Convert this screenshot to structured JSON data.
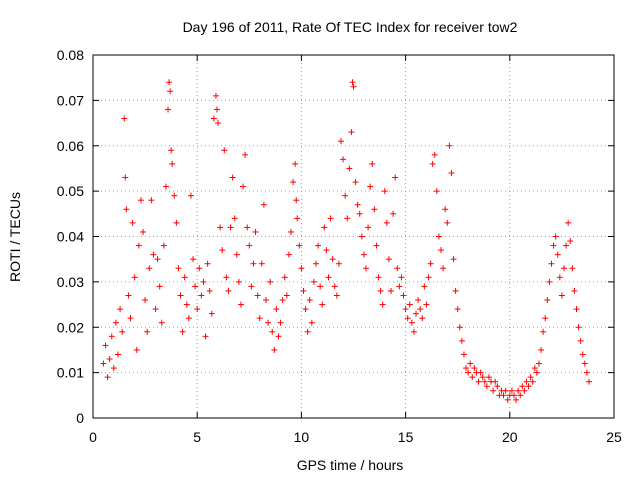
{
  "chart_data": {
    "type": "scatter",
    "title": "Day 196 of 2011, Rate Of TEC Index for receiver tow2",
    "xlabel": "GPS time / hours",
    "ylabel": "ROTI / TECUs",
    "xlim": [
      0,
      25
    ],
    "ylim": [
      0,
      0.08
    ],
    "x_ticks": [
      0,
      5,
      10,
      15,
      20,
      25
    ],
    "y_ticks": [
      0,
      0.01,
      0.02,
      0.03,
      0.04,
      0.05,
      0.06,
      0.07,
      0.08
    ],
    "x_tick_labels": [
      "0",
      "5",
      "10",
      "15",
      "20",
      "25"
    ],
    "y_tick_labels": [
      "0",
      "0.01",
      "0.02",
      "0.03",
      "0.04",
      "0.05",
      "0.06",
      "0.07",
      "0.08"
    ],
    "grid": true,
    "marker": "+",
    "color": "#ff0000",
    "series": [
      {
        "points": [
          [
            0.5,
            0.012
          ],
          [
            0.6,
            0.016
          ],
          [
            0.7,
            0.009
          ],
          [
            0.8,
            0.013
          ],
          [
            0.9,
            0.018
          ],
          [
            1.0,
            0.011
          ],
          [
            1.1,
            0.021
          ],
          [
            1.2,
            0.014
          ],
          [
            1.3,
            0.024
          ],
          [
            1.4,
            0.019
          ],
          [
            1.5,
            0.066
          ],
          [
            1.55,
            0.053
          ],
          [
            1.6,
            0.046
          ],
          [
            1.7,
            0.027
          ],
          [
            1.8,
            0.022
          ],
          [
            1.9,
            0.043
          ],
          [
            2.0,
            0.031
          ],
          [
            2.1,
            0.015
          ],
          [
            2.2,
            0.038
          ],
          [
            2.3,
            0.048
          ],
          [
            2.4,
            0.041
          ],
          [
            2.5,
            0.026
          ],
          [
            2.6,
            0.019
          ],
          [
            2.7,
            0.033
          ],
          [
            2.8,
            0.048
          ],
          [
            2.9,
            0.036
          ],
          [
            3.0,
            0.024
          ],
          [
            3.1,
            0.035
          ],
          [
            3.2,
            0.029
          ],
          [
            3.3,
            0.021
          ],
          [
            3.4,
            0.038
          ],
          [
            3.5,
            0.051
          ],
          [
            3.6,
            0.068
          ],
          [
            3.65,
            0.074
          ],
          [
            3.7,
            0.072
          ],
          [
            3.75,
            0.059
          ],
          [
            3.8,
            0.056
          ],
          [
            3.9,
            0.049
          ],
          [
            4.0,
            0.043
          ],
          [
            4.1,
            0.033
          ],
          [
            4.2,
            0.027
          ],
          [
            4.3,
            0.019
          ],
          [
            4.4,
            0.031
          ],
          [
            4.5,
            0.025
          ],
          [
            4.6,
            0.022
          ],
          [
            4.7,
            0.049
          ],
          [
            4.8,
            0.035
          ],
          [
            4.9,
            0.029
          ],
          [
            5.0,
            0.024
          ],
          [
            5.1,
            0.033
          ],
          [
            5.2,
            0.027
          ],
          [
            5.3,
            0.03
          ],
          [
            5.4,
            0.018
          ],
          [
            5.5,
            0.034
          ],
          [
            5.6,
            0.028
          ],
          [
            5.7,
            0.023
          ],
          [
            5.8,
            0.066
          ],
          [
            5.9,
            0.071
          ],
          [
            5.95,
            0.068
          ],
          [
            6.0,
            0.065
          ],
          [
            6.1,
            0.042
          ],
          [
            6.2,
            0.037
          ],
          [
            6.3,
            0.059
          ],
          [
            6.4,
            0.031
          ],
          [
            6.5,
            0.028
          ],
          [
            6.6,
            0.042
          ],
          [
            6.7,
            0.053
          ],
          [
            6.8,
            0.044
          ],
          [
            6.9,
            0.036
          ],
          [
            7.0,
            0.03
          ],
          [
            7.1,
            0.025
          ],
          [
            7.2,
            0.051
          ],
          [
            7.3,
            0.058
          ],
          [
            7.4,
            0.042
          ],
          [
            7.5,
            0.038
          ],
          [
            7.6,
            0.029
          ],
          [
            7.7,
            0.034
          ],
          [
            7.8,
            0.041
          ],
          [
            7.9,
            0.027
          ],
          [
            8.0,
            0.022
          ],
          [
            8.1,
            0.034
          ],
          [
            8.2,
            0.047
          ],
          [
            8.3,
            0.026
          ],
          [
            8.4,
            0.021
          ],
          [
            8.5,
            0.03
          ],
          [
            8.6,
            0.019
          ],
          [
            8.7,
            0.015
          ],
          [
            8.8,
            0.024
          ],
          [
            8.9,
            0.018
          ],
          [
            9.0,
            0.021
          ],
          [
            9.1,
            0.026
          ],
          [
            9.2,
            0.031
          ],
          [
            9.3,
            0.027
          ],
          [
            9.4,
            0.036
          ],
          [
            9.5,
            0.041
          ],
          [
            9.6,
            0.052
          ],
          [
            9.7,
            0.056
          ],
          [
            9.75,
            0.048
          ],
          [
            9.8,
            0.044
          ],
          [
            9.9,
            0.038
          ],
          [
            10.0,
            0.033
          ],
          [
            10.1,
            0.028
          ],
          [
            10.2,
            0.024
          ],
          [
            10.3,
            0.019
          ],
          [
            10.4,
            0.026
          ],
          [
            10.5,
            0.021
          ],
          [
            10.6,
            0.03
          ],
          [
            10.7,
            0.034
          ],
          [
            10.8,
            0.038
          ],
          [
            10.9,
            0.029
          ],
          [
            11.0,
            0.025
          ],
          [
            11.1,
            0.042
          ],
          [
            11.2,
            0.037
          ],
          [
            11.3,
            0.031
          ],
          [
            11.4,
            0.044
          ],
          [
            11.5,
            0.035
          ],
          [
            11.6,
            0.029
          ],
          [
            11.7,
            0.027
          ],
          [
            11.8,
            0.034
          ],
          [
            11.9,
            0.061
          ],
          [
            12.0,
            0.057
          ],
          [
            12.1,
            0.049
          ],
          [
            12.2,
            0.044
          ],
          [
            12.3,
            0.055
          ],
          [
            12.4,
            0.063
          ],
          [
            12.45,
            0.074
          ],
          [
            12.5,
            0.073
          ],
          [
            12.6,
            0.052
          ],
          [
            12.7,
            0.047
          ],
          [
            12.8,
            0.045
          ],
          [
            12.9,
            0.04
          ],
          [
            13.0,
            0.036
          ],
          [
            13.1,
            0.033
          ],
          [
            13.2,
            0.042
          ],
          [
            13.3,
            0.051
          ],
          [
            13.4,
            0.056
          ],
          [
            13.5,
            0.046
          ],
          [
            13.6,
            0.038
          ],
          [
            13.7,
            0.031
          ],
          [
            13.8,
            0.028
          ],
          [
            13.9,
            0.025
          ],
          [
            14.0,
            0.05
          ],
          [
            14.1,
            0.043
          ],
          [
            14.2,
            0.035
          ],
          [
            14.3,
            0.028
          ],
          [
            14.4,
            0.045
          ],
          [
            14.5,
            0.053
          ],
          [
            14.6,
            0.033
          ],
          [
            14.7,
            0.029
          ],
          [
            14.8,
            0.031
          ],
          [
            14.9,
            0.027
          ],
          [
            15.0,
            0.024
          ],
          [
            15.1,
            0.022
          ],
          [
            15.2,
            0.025
          ],
          [
            15.3,
            0.021
          ],
          [
            15.4,
            0.019
          ],
          [
            15.5,
            0.023
          ],
          [
            15.6,
            0.026
          ],
          [
            15.7,
            0.024
          ],
          [
            15.8,
            0.022
          ],
          [
            15.9,
            0.029
          ],
          [
            16.0,
            0.025
          ],
          [
            16.1,
            0.031
          ],
          [
            16.2,
            0.034
          ],
          [
            16.3,
            0.056
          ],
          [
            16.4,
            0.058
          ],
          [
            16.5,
            0.05
          ],
          [
            16.6,
            0.04
          ],
          [
            16.7,
            0.037
          ],
          [
            16.8,
            0.033
          ],
          [
            16.9,
            0.046
          ],
          [
            17.0,
            0.043
          ],
          [
            17.1,
            0.06
          ],
          [
            17.2,
            0.054
          ],
          [
            17.3,
            0.035
          ],
          [
            17.4,
            0.028
          ],
          [
            17.5,
            0.024
          ],
          [
            17.6,
            0.02
          ],
          [
            17.7,
            0.017
          ],
          [
            17.8,
            0.014
          ],
          [
            17.9,
            0.011
          ],
          [
            18.0,
            0.01
          ],
          [
            18.1,
            0.012
          ],
          [
            18.2,
            0.009
          ],
          [
            18.3,
            0.011
          ],
          [
            18.4,
            0.01
          ],
          [
            18.5,
            0.008
          ],
          [
            18.6,
            0.01
          ],
          [
            18.7,
            0.009
          ],
          [
            18.8,
            0.008
          ],
          [
            18.9,
            0.007
          ],
          [
            19.0,
            0.009
          ],
          [
            19.1,
            0.008
          ],
          [
            19.2,
            0.006
          ],
          [
            19.3,
            0.008
          ],
          [
            19.4,
            0.007
          ],
          [
            19.5,
            0.005
          ],
          [
            19.6,
            0.006
          ],
          [
            19.7,
            0.005
          ],
          [
            19.8,
            0.006
          ],
          [
            19.9,
            0.004
          ],
          [
            20.0,
            0.005
          ],
          [
            20.1,
            0.006
          ],
          [
            20.2,
            0.005
          ],
          [
            20.3,
            0.004
          ],
          [
            20.4,
            0.006
          ],
          [
            20.5,
            0.005
          ],
          [
            20.6,
            0.007
          ],
          [
            20.7,
            0.006
          ],
          [
            20.8,
            0.008
          ],
          [
            20.9,
            0.007
          ],
          [
            21.0,
            0.009
          ],
          [
            21.1,
            0.008
          ],
          [
            21.2,
            0.011
          ],
          [
            21.3,
            0.01
          ],
          [
            21.4,
            0.012
          ],
          [
            21.5,
            0.015
          ],
          [
            21.6,
            0.019
          ],
          [
            21.7,
            0.022
          ],
          [
            21.8,
            0.026
          ],
          [
            21.9,
            0.03
          ],
          [
            22.0,
            0.034
          ],
          [
            22.1,
            0.038
          ],
          [
            22.2,
            0.04
          ],
          [
            22.3,
            0.036
          ],
          [
            22.4,
            0.031
          ],
          [
            22.5,
            0.027
          ],
          [
            22.6,
            0.033
          ],
          [
            22.7,
            0.038
          ],
          [
            22.8,
            0.043
          ],
          [
            22.9,
            0.039
          ],
          [
            23.0,
            0.033
          ],
          [
            23.1,
            0.028
          ],
          [
            23.2,
            0.024
          ],
          [
            23.3,
            0.02
          ],
          [
            23.4,
            0.017
          ],
          [
            23.5,
            0.014
          ],
          [
            23.6,
            0.012
          ],
          [
            23.7,
            0.01
          ],
          [
            23.8,
            0.008
          ]
        ]
      }
    ]
  }
}
